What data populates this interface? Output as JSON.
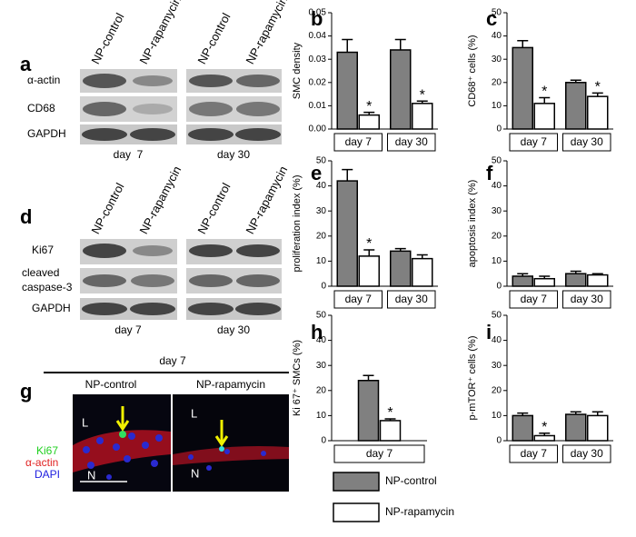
{
  "chart_data": [
    {
      "type": "bar",
      "label": "b",
      "ylabel": "SMC density",
      "categories": [
        "day 7",
        "day 30"
      ],
      "ylim": [
        0,
        0.05
      ],
      "yticks": [
        {
          "value": 0,
          "label": "0.00"
        },
        0.01,
        0.02,
        0.03,
        0.04,
        0.05
      ],
      "series": [
        {
          "name": "NP-control",
          "color": "#808080",
          "values": [
            0.033,
            0.034
          ],
          "errors": [
            0.0055,
            0.0045
          ]
        },
        {
          "name": "NP-rapamycin",
          "color": "#ffffff",
          "values": [
            0.006,
            0.011
          ],
          "errors": [
            0.0012,
            0.001
          ],
          "markers": [
            "*",
            "*"
          ]
        }
      ]
    },
    {
      "type": "bar",
      "label": "c",
      "ylabel": "CD68⁺ cells (%)",
      "categories": [
        "day 7",
        "day 30"
      ],
      "ylim": [
        0,
        50
      ],
      "yticks": [
        0,
        10,
        20,
        30,
        40,
        50
      ],
      "series": [
        {
          "name": "NP-control",
          "color": "#808080",
          "values": [
            35,
            20
          ],
          "errors": [
            3,
            1
          ]
        },
        {
          "name": "NP-rapamycin",
          "color": "#ffffff",
          "values": [
            11,
            14
          ],
          "errors": [
            2.5,
            1.5
          ],
          "markers": [
            "*",
            "*"
          ]
        }
      ]
    },
    {
      "type": "bar",
      "label": "e",
      "ylabel": "proliferation index (%)",
      "categories": [
        "day 7",
        "day 30"
      ],
      "ylim": [
        0,
        50
      ],
      "yticks": [
        0,
        10,
        20,
        30,
        40,
        50
      ],
      "series": [
        {
          "name": "NP-control",
          "color": "#808080",
          "values": [
            42,
            14
          ],
          "errors": [
            4.5,
            1
          ]
        },
        {
          "name": "NP-rapamycin",
          "color": "#ffffff",
          "values": [
            12,
            11
          ],
          "errors": [
            2.5,
            1.5
          ],
          "markers": [
            "*",
            null
          ]
        }
      ]
    },
    {
      "type": "bar",
      "label": "f",
      "ylabel": "apoptosis index (%)",
      "categories": [
        "day 7",
        "day 30"
      ],
      "ylim": [
        0,
        50
      ],
      "yticks": [
        0,
        10,
        20,
        30,
        40,
        50
      ],
      "series": [
        {
          "name": "NP-control",
          "color": "#808080",
          "values": [
            4,
            5
          ],
          "errors": [
            1,
            1
          ]
        },
        {
          "name": "NP-rapamycin",
          "color": "#ffffff",
          "values": [
            3,
            4.5
          ],
          "errors": [
            1,
            0.5
          ]
        }
      ]
    },
    {
      "type": "bar",
      "label": "h",
      "ylabel": "Ki 67⁺ SMCs (%)",
      "categories": [
        "day 7"
      ],
      "ylim": [
        0,
        50
      ],
      "yticks": [
        0,
        10,
        20,
        30,
        40,
        50
      ],
      "series": [
        {
          "name": "NP-control",
          "color": "#808080",
          "values": [
            24
          ],
          "errors": [
            2
          ]
        },
        {
          "name": "NP-rapamycin",
          "color": "#ffffff",
          "values": [
            8
          ],
          "errors": [
            0.7
          ],
          "markers": [
            "*"
          ]
        }
      ]
    },
    {
      "type": "bar",
      "label": "i",
      "ylabel": "p-mTOR⁺ cells (%)",
      "categories": [
        "day 7",
        "day 30"
      ],
      "ylim": [
        0,
        50
      ],
      "yticks": [
        0,
        10,
        20,
        30,
        40,
        50
      ],
      "series": [
        {
          "name": "NP-control",
          "color": "#808080",
          "values": [
            10,
            10.5
          ],
          "errors": [
            1,
            1
          ]
        },
        {
          "name": "NP-rapamycin",
          "color": "#ffffff",
          "values": [
            2,
            10
          ],
          "errors": [
            1,
            1.5
          ],
          "markers": [
            "*",
            null
          ]
        }
      ]
    }
  ],
  "blots": [
    {
      "label": "a",
      "columns": [
        "NP-control",
        "NP-rapamycin",
        "NP-control",
        "NP-rapamycin"
      ],
      "rows": [
        "α-actin",
        "CD68",
        "GAPDH"
      ],
      "days": [
        "day  7",
        "day 30"
      ]
    },
    {
      "label": "d",
      "columns": [
        "NP-control",
        "NP-rapamycin",
        "NP-control",
        "NP-rapamycin"
      ],
      "rows": [
        "Ki67",
        "cleaved",
        "caspase-3",
        "GAPDH"
      ],
      "days": [
        "day 7",
        "day 30"
      ]
    }
  ],
  "micrograph": {
    "label": "g",
    "title": "day 7",
    "panels": [
      "NP-control",
      "NP-rapamycin"
    ],
    "stains": [
      "Ki67",
      "α-actin",
      "DAPI"
    ],
    "regions": [
      "L",
      "N",
      "L",
      "N"
    ]
  }
}
